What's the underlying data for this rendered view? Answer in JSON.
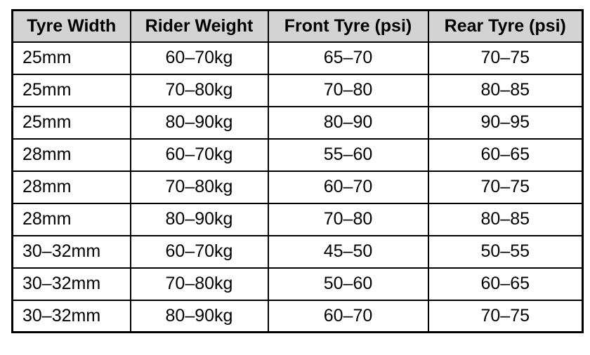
{
  "colors": {
    "header_background": "#d3d3d3",
    "border": "#000000",
    "cell_background": "#ffffff",
    "text": "#000000"
  },
  "chart_data": {
    "type": "table",
    "columns": [
      "Tyre Width",
      "Rider Weight",
      "Front Tyre (psi)",
      "Rear Tyre (psi)"
    ],
    "rows": [
      [
        "25mm",
        "60–70kg",
        "65–70",
        "70–75"
      ],
      [
        "25mm",
        "70–80kg",
        "70–80",
        "80–85"
      ],
      [
        "25mm",
        "80–90kg",
        "80–90",
        "90–95"
      ],
      [
        "28mm",
        "60–70kg",
        "55–60",
        "60–65"
      ],
      [
        "28mm",
        "70–80kg",
        "60–70",
        "70–75"
      ],
      [
        "28mm",
        "80–90kg",
        "70–80",
        "80–85"
      ],
      [
        "30–32mm",
        "60–70kg",
        "45–50",
        "50–55"
      ],
      [
        "30–32mm",
        "70–80kg",
        "50–60",
        "60–65"
      ],
      [
        "30–32mm",
        "80–90kg",
        "60–70",
        "70–75"
      ]
    ]
  }
}
